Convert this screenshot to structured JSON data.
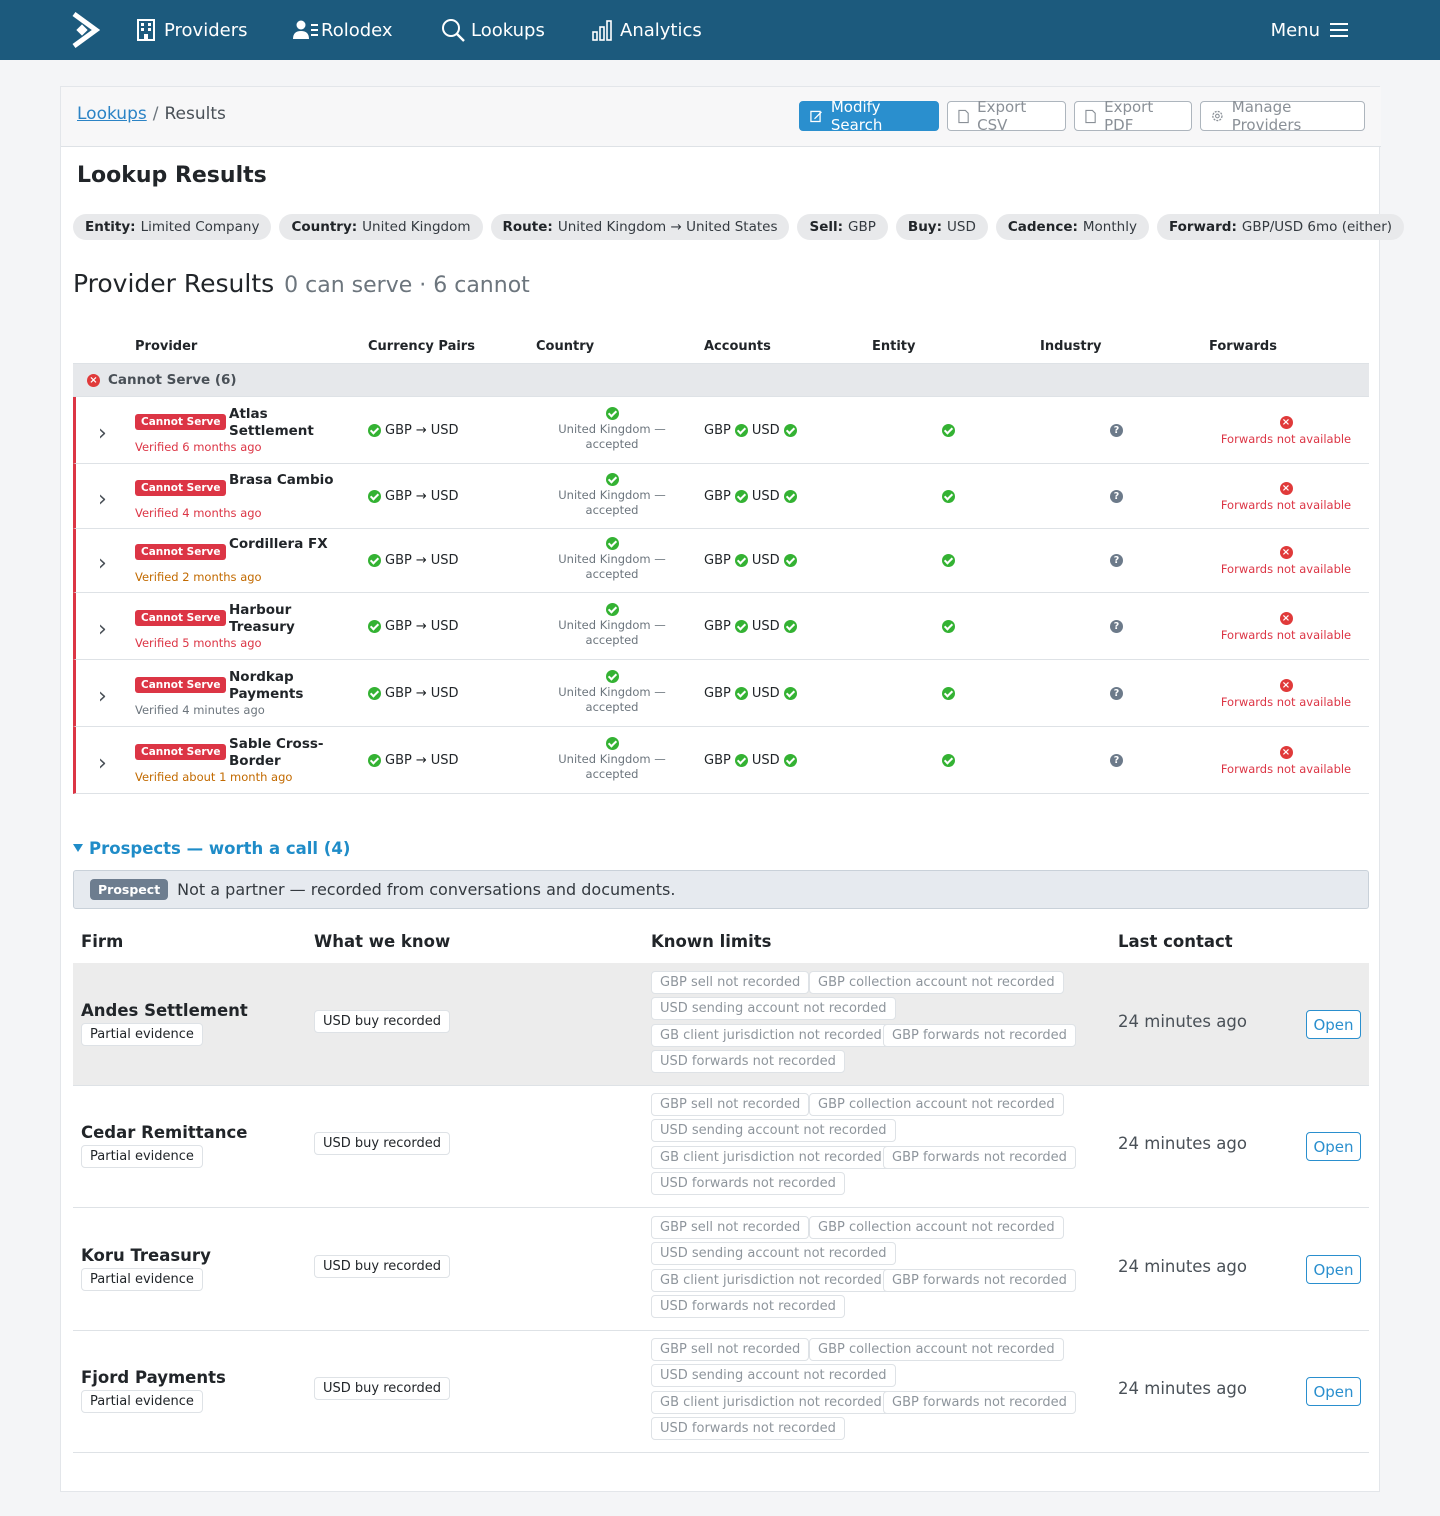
{
  "nav": {
    "items": [
      {
        "label": "Providers",
        "icon": "building-icon"
      },
      {
        "label": "Rolodex",
        "icon": "contacts-icon"
      },
      {
        "label": "Lookups",
        "icon": "search-icon"
      },
      {
        "label": "Analytics",
        "icon": "bar-chart-icon"
      }
    ],
    "menu_label": "Menu"
  },
  "breadcrumb": {
    "parent": "Lookups",
    "separator": "/",
    "current": "Results"
  },
  "toolbar": {
    "modify": "Modify Search",
    "export_csv": "Export CSV",
    "export_pdf": "Export PDF",
    "manage": "Manage Providers"
  },
  "page_title": "Lookup Results",
  "criteria": [
    {
      "key": "Entity:",
      "value": "Limited Company"
    },
    {
      "key": "Country:",
      "value": "United Kingdom"
    },
    {
      "key": "Route:",
      "value": "United Kingdom → United States"
    },
    {
      "key": "Sell:",
      "value": "GBP"
    },
    {
      "key": "Buy:",
      "value": "USD"
    },
    {
      "key": "Cadence:",
      "value": "Monthly"
    },
    {
      "key": "Forward:",
      "value": "GBP/USD 6mo (either)"
    }
  ],
  "results": {
    "title": "Provider Results",
    "summary": "0 can serve · 6 cannot"
  },
  "table_headers": {
    "provider": "Provider",
    "pairs": "Currency Pairs",
    "country": "Country",
    "accounts": "Accounts",
    "entity": "Entity",
    "industry": "Industry",
    "forwards": "Forwards"
  },
  "group_label": "Cannot Serve (6)",
  "providers": [
    {
      "badge": "Cannot Serve",
      "name": "Atlas Settlement",
      "verified": "Verified 6 months ago",
      "verified_tone": "red",
      "pair_from": "GBP",
      "pair_to": "USD",
      "pair_arrow": "→",
      "country": "United Kingdom — accepted",
      "acct_a": "GBP",
      "acct_b": "USD",
      "forwards": "Forwards not available"
    },
    {
      "badge": "Cannot Serve",
      "name": "Brasa Cambio",
      "verified": "Verified 4 months ago",
      "verified_tone": "red",
      "pair_from": "GBP",
      "pair_to": "USD",
      "pair_arrow": "→",
      "country": "United Kingdom — accepted",
      "acct_a": "GBP",
      "acct_b": "USD",
      "forwards": "Forwards not available"
    },
    {
      "badge": "Cannot Serve",
      "name": "Cordillera FX",
      "verified": "Verified 2 months ago",
      "verified_tone": "orange",
      "pair_from": "GBP",
      "pair_to": "USD",
      "pair_arrow": "→",
      "country": "United Kingdom — accepted",
      "acct_a": "GBP",
      "acct_b": "USD",
      "forwards": "Forwards not available"
    },
    {
      "badge": "Cannot Serve",
      "name": "Harbour Treasury",
      "verified": "Verified 5 months ago",
      "verified_tone": "red",
      "pair_from": "GBP",
      "pair_to": "USD",
      "pair_arrow": "→",
      "country": "United Kingdom — accepted",
      "acct_a": "GBP",
      "acct_b": "USD",
      "forwards": "Forwards not available"
    },
    {
      "badge": "Cannot Serve",
      "name": "Nordkap Payments",
      "verified": "Verified 4 minutes ago",
      "verified_tone": "grey",
      "pair_from": "GBP",
      "pair_to": "USD",
      "pair_arrow": "→",
      "country": "United Kingdom — accepted",
      "acct_a": "GBP",
      "acct_b": "USD",
      "forwards": "Forwards not available"
    },
    {
      "badge": "Cannot Serve",
      "name": "Sable Cross-Border",
      "verified": "Verified about 1 month ago",
      "verified_tone": "orange",
      "pair_from": "GBP",
      "pair_to": "USD",
      "pair_arrow": "→",
      "country": "United Kingdom — accepted",
      "acct_a": "GBP",
      "acct_b": "USD",
      "forwards": "Forwards not available"
    }
  ],
  "prospects": {
    "toggle": "Prospects — worth a call (4)",
    "badge": "Prospect",
    "note": "Not a partner — recorded from conversations and documents.",
    "headers": {
      "firm": "Firm",
      "know": "What we know",
      "limits": "Known limits",
      "last": "Last contact"
    },
    "rows": [
      {
        "firm": "Andes Settlement",
        "evidence": "Partial evidence",
        "know": "USD buy recorded",
        "last": "24 minutes ago",
        "open": "Open",
        "limits": [
          "GBP sell not recorded",
          "GBP collection account not recorded",
          "USD sending account not recorded",
          "GB client jurisdiction not recorded",
          "GBP forwards not recorded",
          "USD forwards not recorded"
        ]
      },
      {
        "firm": "Cedar Remittance",
        "evidence": "Partial evidence",
        "know": "USD buy recorded",
        "last": "24 minutes ago",
        "open": "Open",
        "limits": [
          "GBP sell not recorded",
          "GBP collection account not recorded",
          "USD sending account not recorded",
          "GB client jurisdiction not recorded",
          "GBP forwards not recorded",
          "USD forwards not recorded"
        ]
      },
      {
        "firm": "Koru Treasury",
        "evidence": "Partial evidence",
        "know": "USD buy recorded",
        "last": "24 minutes ago",
        "open": "Open",
        "limits": [
          "GBP sell not recorded",
          "GBP collection account not recorded",
          "USD sending account not recorded",
          "GB client jurisdiction not recorded",
          "GBP forwards not recorded",
          "USD forwards not recorded"
        ]
      },
      {
        "firm": "Fjord Payments",
        "evidence": "Partial evidence",
        "know": "USD buy recorded",
        "last": "24 minutes ago",
        "open": "Open",
        "limits": [
          "GBP sell not recorded",
          "GBP collection account not recorded",
          "USD sending account not recorded",
          "GB client jurisdiction not recorded",
          "GBP forwards not recorded",
          "USD forwards not recorded"
        ]
      }
    ]
  },
  "colors": {
    "nav": "#1c5a7d",
    "primary": "#2a8fce",
    "danger": "#dc3545",
    "success": "#34b233",
    "highlight_row": "#ececec"
  }
}
